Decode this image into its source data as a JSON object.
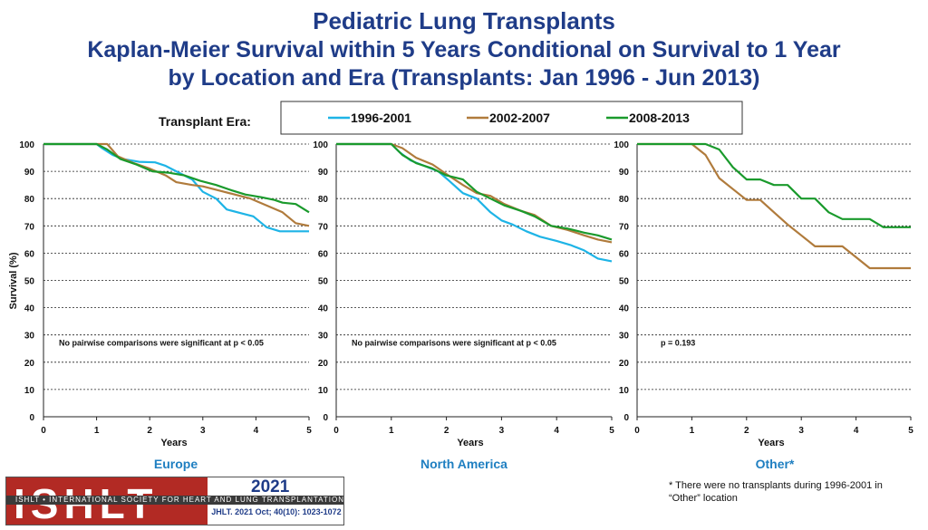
{
  "header": {
    "title": "Pediatric Lung Transplants",
    "subtitle_line1": "Kaplan-Meier Survival within 5 Years Conditional on Survival to 1 Year",
    "subtitle_line2": "by Location and Era (Transplants: Jan 1996 - Jun 2013)"
  },
  "legend": {
    "label": "Transplant Era:",
    "entries": [
      {
        "name": "1996-2001",
        "color": "#1eb4e6"
      },
      {
        "name": "2002-2007",
        "color": "#b07b3c"
      },
      {
        "name": "2008-2013",
        "color": "#1a9a2c"
      }
    ]
  },
  "chart_data": [
    {
      "type": "line",
      "location": "Europe",
      "ylabel": "Survival (%)",
      "xlabel": "Years",
      "xlim": [
        0,
        5
      ],
      "ylim": [
        0,
        100
      ],
      "xticks": [
        "0",
        "1",
        "2",
        "3",
        "4",
        "5"
      ],
      "yticks": [
        "0",
        "10",
        "20",
        "30",
        "40",
        "50",
        "60",
        "70",
        "80",
        "90",
        "100"
      ],
      "annotation": "No pairwise comparisons were significant at p < 0.05",
      "series": [
        {
          "name": "1996-2001",
          "color": "#1eb4e6",
          "x": [
            0,
            1,
            1.1,
            1.3,
            1.5,
            1.8,
            2.1,
            2.3,
            2.6,
            2.8,
            3.0,
            3.25,
            3.45,
            3.75,
            3.95,
            4.2,
            4.45,
            4.7,
            5.0
          ],
          "y": [
            100,
            100,
            98.5,
            96,
            94.5,
            93.5,
            93.3,
            92,
            89,
            87,
            82.5,
            80,
            76,
            74.5,
            73.5,
            69.5,
            68,
            68,
            68
          ]
        },
        {
          "name": "2002-2007",
          "color": "#b07b3c",
          "x": [
            0,
            1,
            1.2,
            1.4,
            1.7,
            2.0,
            2.3,
            2.5,
            2.8,
            3.0,
            3.3,
            3.6,
            3.9,
            4.2,
            4.5,
            4.75,
            5.0
          ],
          "y": [
            100,
            100,
            100,
            95.5,
            93,
            91,
            88.5,
            86,
            85,
            84.5,
            83,
            81.5,
            80,
            77.5,
            75,
            71,
            70
          ]
        },
        {
          "name": "2008-2013",
          "color": "#1a9a2c",
          "x": [
            0,
            1,
            1.2,
            1.45,
            1.75,
            2.05,
            2.35,
            2.65,
            2.95,
            3.25,
            3.55,
            3.8,
            4.1,
            4.35,
            4.5,
            4.75,
            5.0
          ],
          "y": [
            100,
            100,
            98,
            94.5,
            92.5,
            90,
            89.5,
            88.5,
            86.5,
            85,
            83,
            81.5,
            80.5,
            79.5,
            78.5,
            78,
            75
          ]
        }
      ]
    },
    {
      "type": "line",
      "location": "North America",
      "xlabel": "Years",
      "xlim": [
        0,
        5
      ],
      "ylim": [
        0,
        100
      ],
      "xticks": [
        "0",
        "1",
        "2",
        "3",
        "4",
        "5"
      ],
      "yticks": [
        "0",
        "10",
        "20",
        "30",
        "40",
        "50",
        "60",
        "70",
        "80",
        "90",
        "100"
      ],
      "annotation": "No pairwise comparisons were significant at p < 0.05",
      "series": [
        {
          "name": "1996-2001",
          "color": "#1eb4e6",
          "x": [
            0,
            1,
            1.15,
            1.35,
            1.6,
            1.85,
            2.05,
            2.3,
            2.55,
            2.8,
            3.0,
            3.2,
            3.45,
            3.7,
            4.0,
            4.25,
            4.5,
            4.75,
            5.0
          ],
          "y": [
            100,
            100,
            97,
            94,
            92,
            90,
            86.5,
            82,
            80,
            75,
            72,
            70.5,
            68,
            66,
            64.5,
            63,
            61,
            58,
            57
          ]
        },
        {
          "name": "2002-2007",
          "color": "#b07b3c",
          "x": [
            0,
            1,
            1.2,
            1.45,
            1.75,
            2.0,
            2.3,
            2.55,
            2.8,
            3.05,
            3.35,
            3.6,
            3.9,
            4.2,
            4.5,
            4.75,
            5.0
          ],
          "y": [
            100,
            100,
            98.5,
            95,
            92.5,
            89,
            85,
            82,
            81,
            78,
            75.5,
            74,
            70,
            68.5,
            66.5,
            65,
            64
          ]
        },
        {
          "name": "2008-2013",
          "color": "#1a9a2c",
          "x": [
            0,
            1,
            1.2,
            1.45,
            1.75,
            2.0,
            2.3,
            2.55,
            2.8,
            3.05,
            3.35,
            3.6,
            3.9,
            4.2,
            4.5,
            4.75,
            5.0
          ],
          "y": [
            100,
            100,
            96,
            93,
            91,
            88.5,
            87,
            82.5,
            80,
            77.5,
            75.5,
            73.5,
            70,
            69,
            67.5,
            66.5,
            65
          ]
        }
      ]
    },
    {
      "type": "line",
      "location": "Other*",
      "xlabel": "Years",
      "xlim": [
        0,
        5
      ],
      "ylim": [
        0,
        100
      ],
      "xticks": [
        "0",
        "1",
        "2",
        "3",
        "4",
        "5"
      ],
      "yticks": [
        "0",
        "10",
        "20",
        "30",
        "40",
        "50",
        "60",
        "70",
        "80",
        "90",
        "100"
      ],
      "annotation": "p = 0.193",
      "series": [
        {
          "name": "2002-2007",
          "color": "#b07b3c",
          "x": [
            0,
            1,
            1.25,
            1.5,
            1.75,
            2.0,
            2.25,
            2.5,
            2.75,
            3.0,
            3.25,
            3.5,
            3.75,
            4.0,
            4.25,
            4.5,
            4.75,
            5.0
          ],
          "y": [
            100,
            100,
            96,
            87.5,
            83.5,
            79.5,
            79.5,
            75,
            70.5,
            66.5,
            62.5,
            62.5,
            62.5,
            58.5,
            54.5,
            54.5,
            54.5,
            54.5
          ]
        },
        {
          "name": "2008-2013",
          "color": "#1a9a2c",
          "x": [
            0,
            1,
            1.25,
            1.5,
            1.75,
            2.0,
            2.25,
            2.5,
            2.75,
            3.0,
            3.25,
            3.5,
            3.75,
            4.0,
            4.25,
            4.5,
            4.75,
            5.0
          ],
          "y": [
            100,
            100,
            100,
            98,
            91.5,
            87,
            87,
            85,
            85,
            80,
            80,
            75,
            72.5,
            72.5,
            72.5,
            69.5,
            69.5,
            69.5
          ]
        }
      ]
    }
  ],
  "footnote": "* There were no transplants during 1996-2001 in “Other” location",
  "footer": {
    "logo_text": "ISHLT",
    "org_name": "ISHLT • INTERNATIONAL SOCIETY FOR HEART AND LUNG TRANSPLANTATION",
    "year": "2021",
    "citation": "JHLT. 2021 Oct; 40(10): 1023-1072"
  }
}
